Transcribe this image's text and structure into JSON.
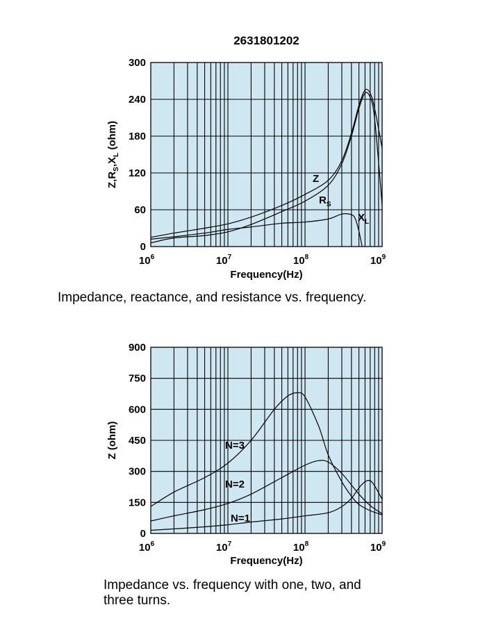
{
  "chart_data": [
    {
      "type": "line",
      "title": "2631801202",
      "xlabel": "Frequency(Hz)",
      "ylabel": "Z,Rₛ,Xₗ (ohm)",
      "ylabel_parts": {
        "main1": "Z,R",
        "sub1": "S",
        "main2": ",X",
        "sub2": "L",
        "unit": " (ohm)"
      },
      "x_scale": "log",
      "xlim": [
        1000000,
        1000000000
      ],
      "ylim": [
        0,
        300
      ],
      "x_ticks": [
        {
          "base": "10",
          "exp": "6"
        },
        {
          "base": "10",
          "exp": "7"
        },
        {
          "base": "10",
          "exp": "8"
        },
        {
          "base": "10",
          "exp": "9"
        }
      ],
      "y_ticks": [
        "0",
        "60",
        "120",
        "180",
        "240",
        "300"
      ],
      "grid": true,
      "background": "#cfe7f1",
      "annotations": [
        {
          "series": "Z",
          "main": "Z",
          "sub": ""
        },
        {
          "series": "Rs",
          "main": "R",
          "sub": "S"
        },
        {
          "series": "XL",
          "main": "X",
          "sub": "L"
        }
      ],
      "series": [
        {
          "name": "Z",
          "x": [
            1000000,
            2000000,
            5000000,
            10000000,
            20000000,
            50000000,
            100000000,
            200000000,
            300000000,
            400000000,
            500000000,
            600000000,
            700000000,
            800000000,
            1000000000
          ],
          "y": [
            15,
            22,
            30,
            37,
            48,
            67,
            85,
            108,
            140,
            185,
            230,
            255,
            250,
            225,
            160
          ]
        },
        {
          "name": "Rs",
          "x": [
            1000000,
            2000000,
            5000000,
            10000000,
            20000000,
            50000000,
            100000000,
            200000000,
            300000000,
            400000000,
            500000000,
            600000000,
            700000000,
            800000000,
            1000000000
          ],
          "y": [
            6,
            14,
            18,
            24,
            36,
            57,
            74,
            100,
            135,
            180,
            225,
            250,
            243,
            208,
            68
          ]
        },
        {
          "name": "XL",
          "x": [
            1000000,
            2000000,
            5000000,
            10000000,
            20000000,
            50000000,
            100000000,
            200000000,
            300000000,
            400000000,
            450000000,
            500000000,
            550000000
          ],
          "y": [
            12,
            16,
            22,
            28,
            32,
            38,
            40,
            45,
            53,
            52,
            45,
            25,
            0
          ]
        }
      ]
    },
    {
      "type": "line",
      "title": "",
      "xlabel": "Frequency(Hz)",
      "ylabel": "Z (ohm)",
      "x_scale": "log",
      "xlim": [
        1000000,
        1000000000
      ],
      "ylim": [
        0,
        900
      ],
      "x_ticks": [
        {
          "base": "10",
          "exp": "6"
        },
        {
          "base": "10",
          "exp": "7"
        },
        {
          "base": "10",
          "exp": "8"
        },
        {
          "base": "10",
          "exp": "9"
        }
      ],
      "y_ticks": [
        "0",
        "150",
        "300",
        "450",
        "600",
        "750",
        "900"
      ],
      "grid": true,
      "background": "#cfe7f1",
      "annotations": [
        {
          "series": "N=3",
          "main": "N=3",
          "sub": ""
        },
        {
          "series": "N=2",
          "main": "N=2",
          "sub": ""
        },
        {
          "series": "N=1",
          "main": "N=1",
          "sub": ""
        }
      ],
      "series": [
        {
          "name": "N=3",
          "x": [
            1000000,
            2000000,
            5000000,
            10000000,
            20000000,
            40000000,
            60000000,
            80000000,
            100000000,
            150000000,
            200000000,
            300000000,
            400000000,
            500000000,
            700000000,
            1000000000
          ],
          "y": [
            130,
            200,
            270,
            340,
            450,
            600,
            665,
            680,
            660,
            520,
            380,
            250,
            180,
            140,
            110,
            90
          ]
        },
        {
          "name": "N=2",
          "x": [
            1000000,
            2000000,
            5000000,
            10000000,
            20000000,
            50000000,
            100000000,
            150000000,
            200000000,
            300000000,
            500000000,
            700000000,
            1000000000
          ],
          "y": [
            60,
            85,
            115,
            145,
            190,
            270,
            330,
            352,
            345,
            290,
            190,
            135,
            95
          ]
        },
        {
          "name": "N=1",
          "x": [
            1000000,
            2000000,
            5000000,
            10000000,
            20000000,
            50000000,
            100000000,
            200000000,
            300000000,
            400000000,
            500000000,
            600000000,
            700000000,
            800000000,
            1000000000
          ],
          "y": [
            15,
            22,
            32,
            42,
            55,
            70,
            85,
            100,
            130,
            170,
            220,
            250,
            255,
            230,
            165
          ]
        }
      ]
    }
  ],
  "captions": {
    "chart1": "Impedance, reactance, and resistance vs. frequency.",
    "chart2_line1": "Impedance vs. frequency with one, two, and",
    "chart2_line2": "three  turns."
  }
}
